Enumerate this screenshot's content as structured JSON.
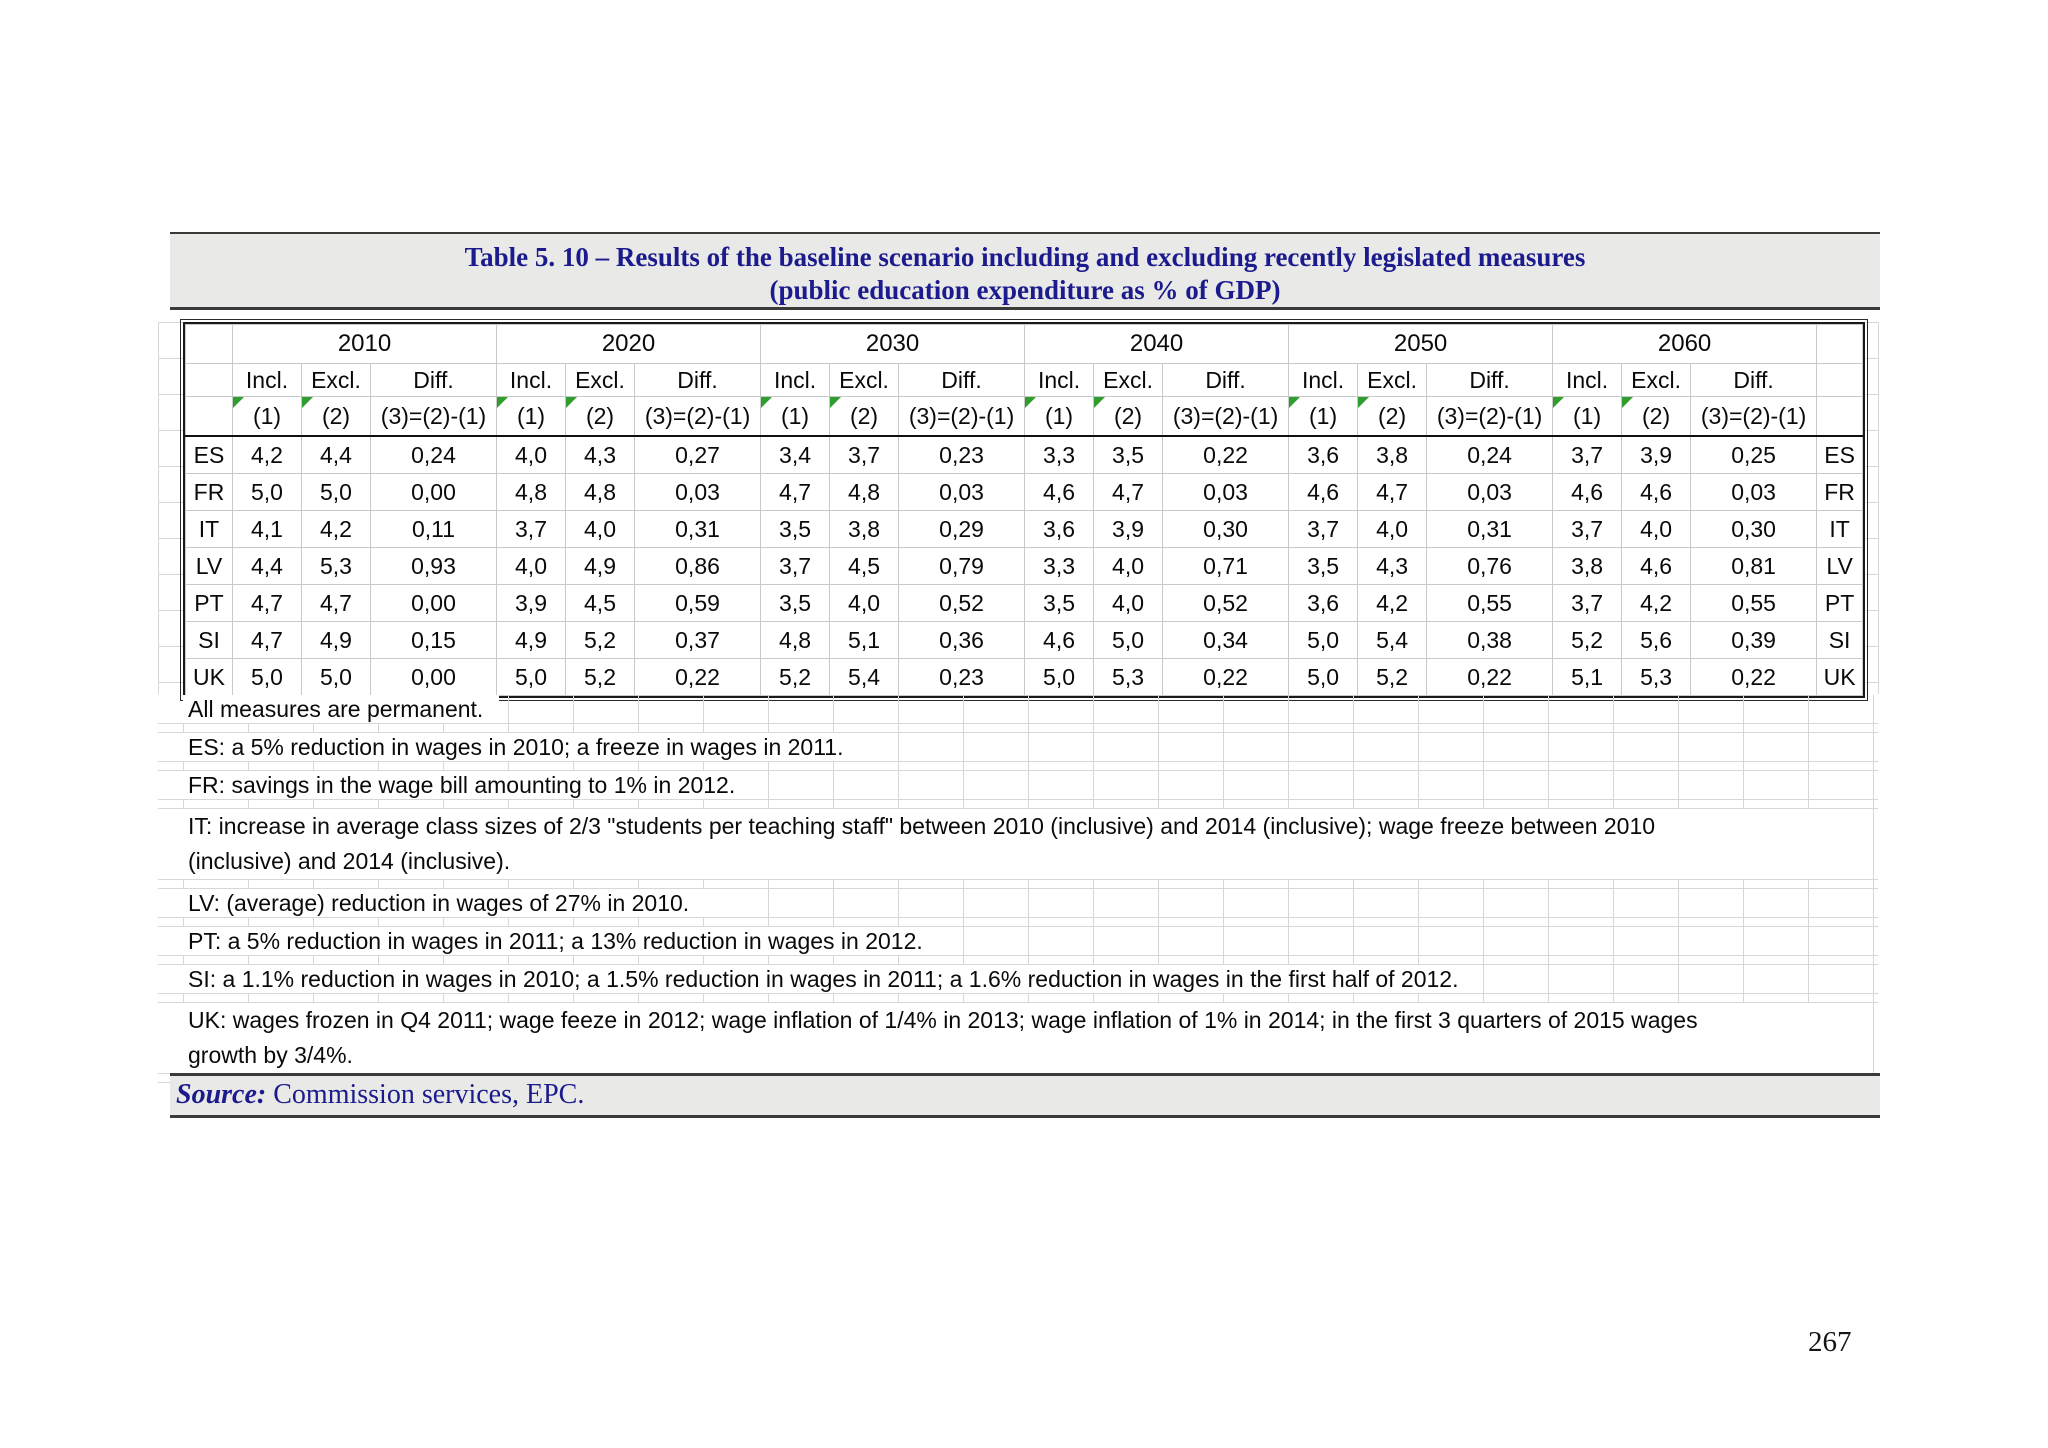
{
  "title": {
    "line1": "Table 5. 10 – Results of the baseline scenario including and excluding recently legislated measures",
    "line2": "(public education expenditure as % of GDP)"
  },
  "table": {
    "years": [
      "2010",
      "2020",
      "2030",
      "2040",
      "2050",
      "2060"
    ],
    "subheaders": [
      "Incl.",
      "Excl.",
      "Diff."
    ],
    "code_labels": [
      "(1)",
      "(2)",
      "(3)=(2)-(1)"
    ],
    "rows": [
      {
        "country": "ES",
        "cells": [
          [
            "4,2",
            "4,4",
            "0,24"
          ],
          [
            "4,0",
            "4,3",
            "0,27"
          ],
          [
            "3,4",
            "3,7",
            "0,23"
          ],
          [
            "3,3",
            "3,5",
            "0,22"
          ],
          [
            "3,6",
            "3,8",
            "0,24"
          ],
          [
            "3,7",
            "3,9",
            "0,25"
          ]
        ]
      },
      {
        "country": "FR",
        "cells": [
          [
            "5,0",
            "5,0",
            "0,00"
          ],
          [
            "4,8",
            "4,8",
            "0,03"
          ],
          [
            "4,7",
            "4,8",
            "0,03"
          ],
          [
            "4,6",
            "4,7",
            "0,03"
          ],
          [
            "4,6",
            "4,7",
            "0,03"
          ],
          [
            "4,6",
            "4,6",
            "0,03"
          ]
        ]
      },
      {
        "country": "IT",
        "cells": [
          [
            "4,1",
            "4,2",
            "0,11"
          ],
          [
            "3,7",
            "4,0",
            "0,31"
          ],
          [
            "3,5",
            "3,8",
            "0,29"
          ],
          [
            "3,6",
            "3,9",
            "0,30"
          ],
          [
            "3,7",
            "4,0",
            "0,31"
          ],
          [
            "3,7",
            "4,0",
            "0,30"
          ]
        ]
      },
      {
        "country": "LV",
        "cells": [
          [
            "4,4",
            "5,3",
            "0,93"
          ],
          [
            "4,0",
            "4,9",
            "0,86"
          ],
          [
            "3,7",
            "4,5",
            "0,79"
          ],
          [
            "3,3",
            "4,0",
            "0,71"
          ],
          [
            "3,5",
            "4,3",
            "0,76"
          ],
          [
            "3,8",
            "4,6",
            "0,81"
          ]
        ]
      },
      {
        "country": "PT",
        "cells": [
          [
            "4,7",
            "4,7",
            "0,00"
          ],
          [
            "3,9",
            "4,5",
            "0,59"
          ],
          [
            "3,5",
            "4,0",
            "0,52"
          ],
          [
            "3,5",
            "4,0",
            "0,52"
          ],
          [
            "3,6",
            "4,2",
            "0,55"
          ],
          [
            "3,7",
            "4,2",
            "0,55"
          ]
        ]
      },
      {
        "country": "SI",
        "cells": [
          [
            "4,7",
            "4,9",
            "0,15"
          ],
          [
            "4,9",
            "5,2",
            "0,37"
          ],
          [
            "4,8",
            "5,1",
            "0,36"
          ],
          [
            "4,6",
            "5,0",
            "0,34"
          ],
          [
            "5,0",
            "5,4",
            "0,38"
          ],
          [
            "5,2",
            "5,6",
            "0,39"
          ]
        ]
      },
      {
        "country": "UK",
        "cells": [
          [
            "5,0",
            "5,0",
            "0,00"
          ],
          [
            "5,0",
            "5,2",
            "0,22"
          ],
          [
            "5,2",
            "5,4",
            "0,23"
          ],
          [
            "5,0",
            "5,3",
            "0,22"
          ],
          [
            "5,0",
            "5,2",
            "0,22"
          ],
          [
            "5,1",
            "5,3",
            "0,22"
          ]
        ]
      }
    ]
  },
  "footnotes": [
    {
      "lines": [
        "All measures are permanent."
      ]
    },
    {
      "lines": [
        "ES: a 5% reduction in wages in 2010; a freeze in wages in 2011."
      ]
    },
    {
      "lines": [
        "FR: savings in the wage bill amounting to 1% in 2012."
      ]
    },
    {
      "lines": [
        "IT: increase in average class sizes of 2/3 \"students per teaching staff\" between 2010 (inclusive) and 2014 (inclusive); wage freeze between 2010",
        "(inclusive) and 2014 (inclusive)."
      ]
    },
    {
      "lines": [
        "LV: (average) reduction in wages of 27% in 2010."
      ]
    },
    {
      "lines": [
        "PT: a 5% reduction in wages in 2011; a 13% reduction in wages in 2012."
      ]
    },
    {
      "lines": [
        "SI: a 1.1% reduction in wages in 2010; a 1.5% reduction in wages in 2011; a 1.6% reduction in wages in the first half of 2012."
      ]
    },
    {
      "lines": [
        "UK: wages frozen in Q4 2011; wage feeze in 2012; wage inflation of 1/4% in 2013; wage inflation of 1% in 2014; in the first 3 quarters of 2015 wages",
        "growth by 3/4%."
      ]
    }
  ],
  "source": {
    "label": "Source:",
    "text": " Commission services, EPC."
  },
  "page": {
    "number": "267"
  },
  "colors": {
    "accent_navy": "#1b1b8e",
    "band_bg": "#e9e9e7",
    "grid_light": "#d7d7d7",
    "border_dark": "#1a1a1a",
    "comment_green": "#2f9e2f"
  },
  "icons": {
    "comment_marker": "green-triangle"
  }
}
